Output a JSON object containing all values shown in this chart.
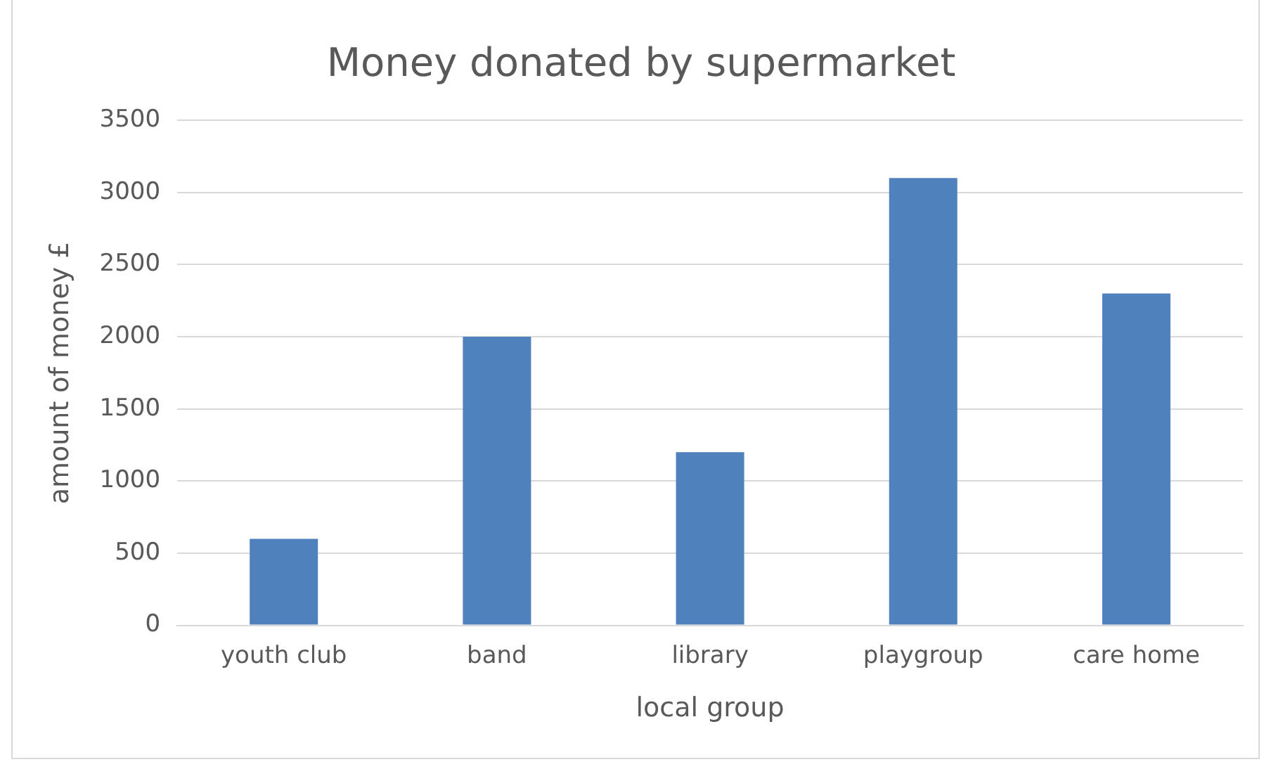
{
  "chart_data": {
    "type": "bar",
    "title": "Money donated by supermarket",
    "xlabel": "local group",
    "ylabel": "amount of money £",
    "categories": [
      "youth club",
      "band",
      "library",
      "playgroup",
      "care home"
    ],
    "values": [
      600,
      2000,
      1200,
      3100,
      2300
    ],
    "color": "#4f81bd",
    "ylim": [
      0,
      3500
    ],
    "yticks": [
      0,
      500,
      1000,
      1500,
      2000,
      2500,
      3000,
      3500
    ],
    "grid": "y",
    "legend": false
  }
}
